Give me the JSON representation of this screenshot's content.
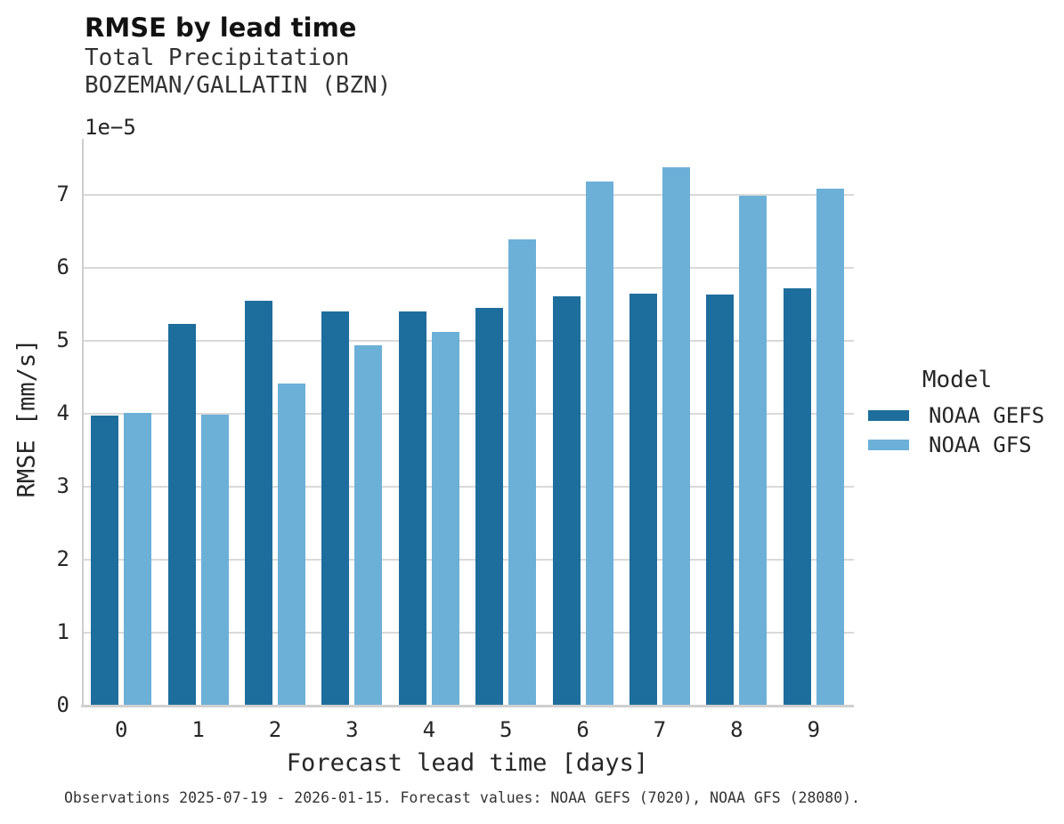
{
  "header": {
    "title": "RMSE by lead time",
    "subtitle": [
      "Total Precipitation",
      "BOZEMAN/GALLATIN (BZN)"
    ]
  },
  "chart_data": {
    "type": "bar",
    "title": "RMSE by lead time",
    "subtitle": "Total Precipitation — BOZEMAN/GALLATIN (BZN)",
    "xlabel": "Forecast lead time [days]",
    "ylabel": "RMSE [mm/s]",
    "y_offset_text": "1e−5",
    "value_scale": "1e-5",
    "categories": [
      "0",
      "1",
      "2",
      "3",
      "4",
      "5",
      "6",
      "7",
      "8",
      "9"
    ],
    "series": [
      {
        "name": "NOAA GEFS",
        "color": "#1d6e9c",
        "values": [
          3.97,
          5.23,
          5.55,
          5.4,
          5.4,
          5.45,
          5.61,
          5.65,
          5.63,
          5.72
        ]
      },
      {
        "name": "NOAA GFS",
        "color": "#6cb0d8",
        "values": [
          4.01,
          3.99,
          4.41,
          4.94,
          5.12,
          6.39,
          7.18,
          7.38,
          6.99,
          7.09
        ]
      }
    ],
    "yticks": [
      "0",
      "1",
      "2",
      "3",
      "4",
      "5",
      "6",
      "7"
    ],
    "ylim": [
      0,
      7.78
    ],
    "grid": true,
    "legend_title": "Model",
    "legend_position": "right",
    "caption": "Observations 2025-07-19 - 2026-01-15. Forecast values: NOAA GEFS (7020), NOAA GFS (28080)."
  }
}
